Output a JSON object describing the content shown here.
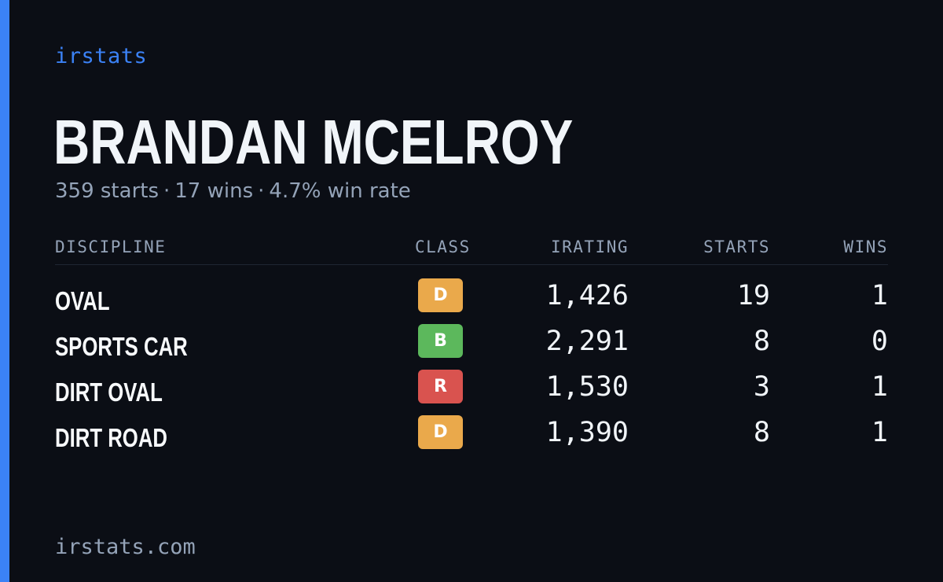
{
  "brand": "irstats",
  "player": {
    "name": "BRANDAN MCELROY",
    "starts_text": "359 starts",
    "wins_text": "17 wins",
    "win_rate_text": "4.7% win rate",
    "separator": "·"
  },
  "table": {
    "headers": {
      "discipline": "DISCIPLINE",
      "class": "CLASS",
      "irating": "IRATING",
      "starts": "STARTS",
      "wins": "WINS"
    },
    "rows": [
      {
        "discipline": "OVAL",
        "class": "D",
        "class_color": "#eaa94b",
        "irating": "1,426",
        "starts": "19",
        "wins": "1"
      },
      {
        "discipline": "SPORTS CAR",
        "class": "B",
        "class_color": "#5cb85c",
        "irating": "2,291",
        "starts": "8",
        "wins": "0"
      },
      {
        "discipline": "DIRT OVAL",
        "class": "R",
        "class_color": "#d9534f",
        "irating": "1,530",
        "starts": "3",
        "wins": "1"
      },
      {
        "discipline": "DIRT ROAD",
        "class": "D",
        "class_color": "#eaa94b",
        "irating": "1,390",
        "starts": "8",
        "wins": "1"
      }
    ]
  },
  "footer": "irstats.com",
  "colors": {
    "background": "#0b0e15",
    "accent": "#3b82f6",
    "text_primary": "#f1f5f9",
    "text_muted": "#94a3b8"
  }
}
